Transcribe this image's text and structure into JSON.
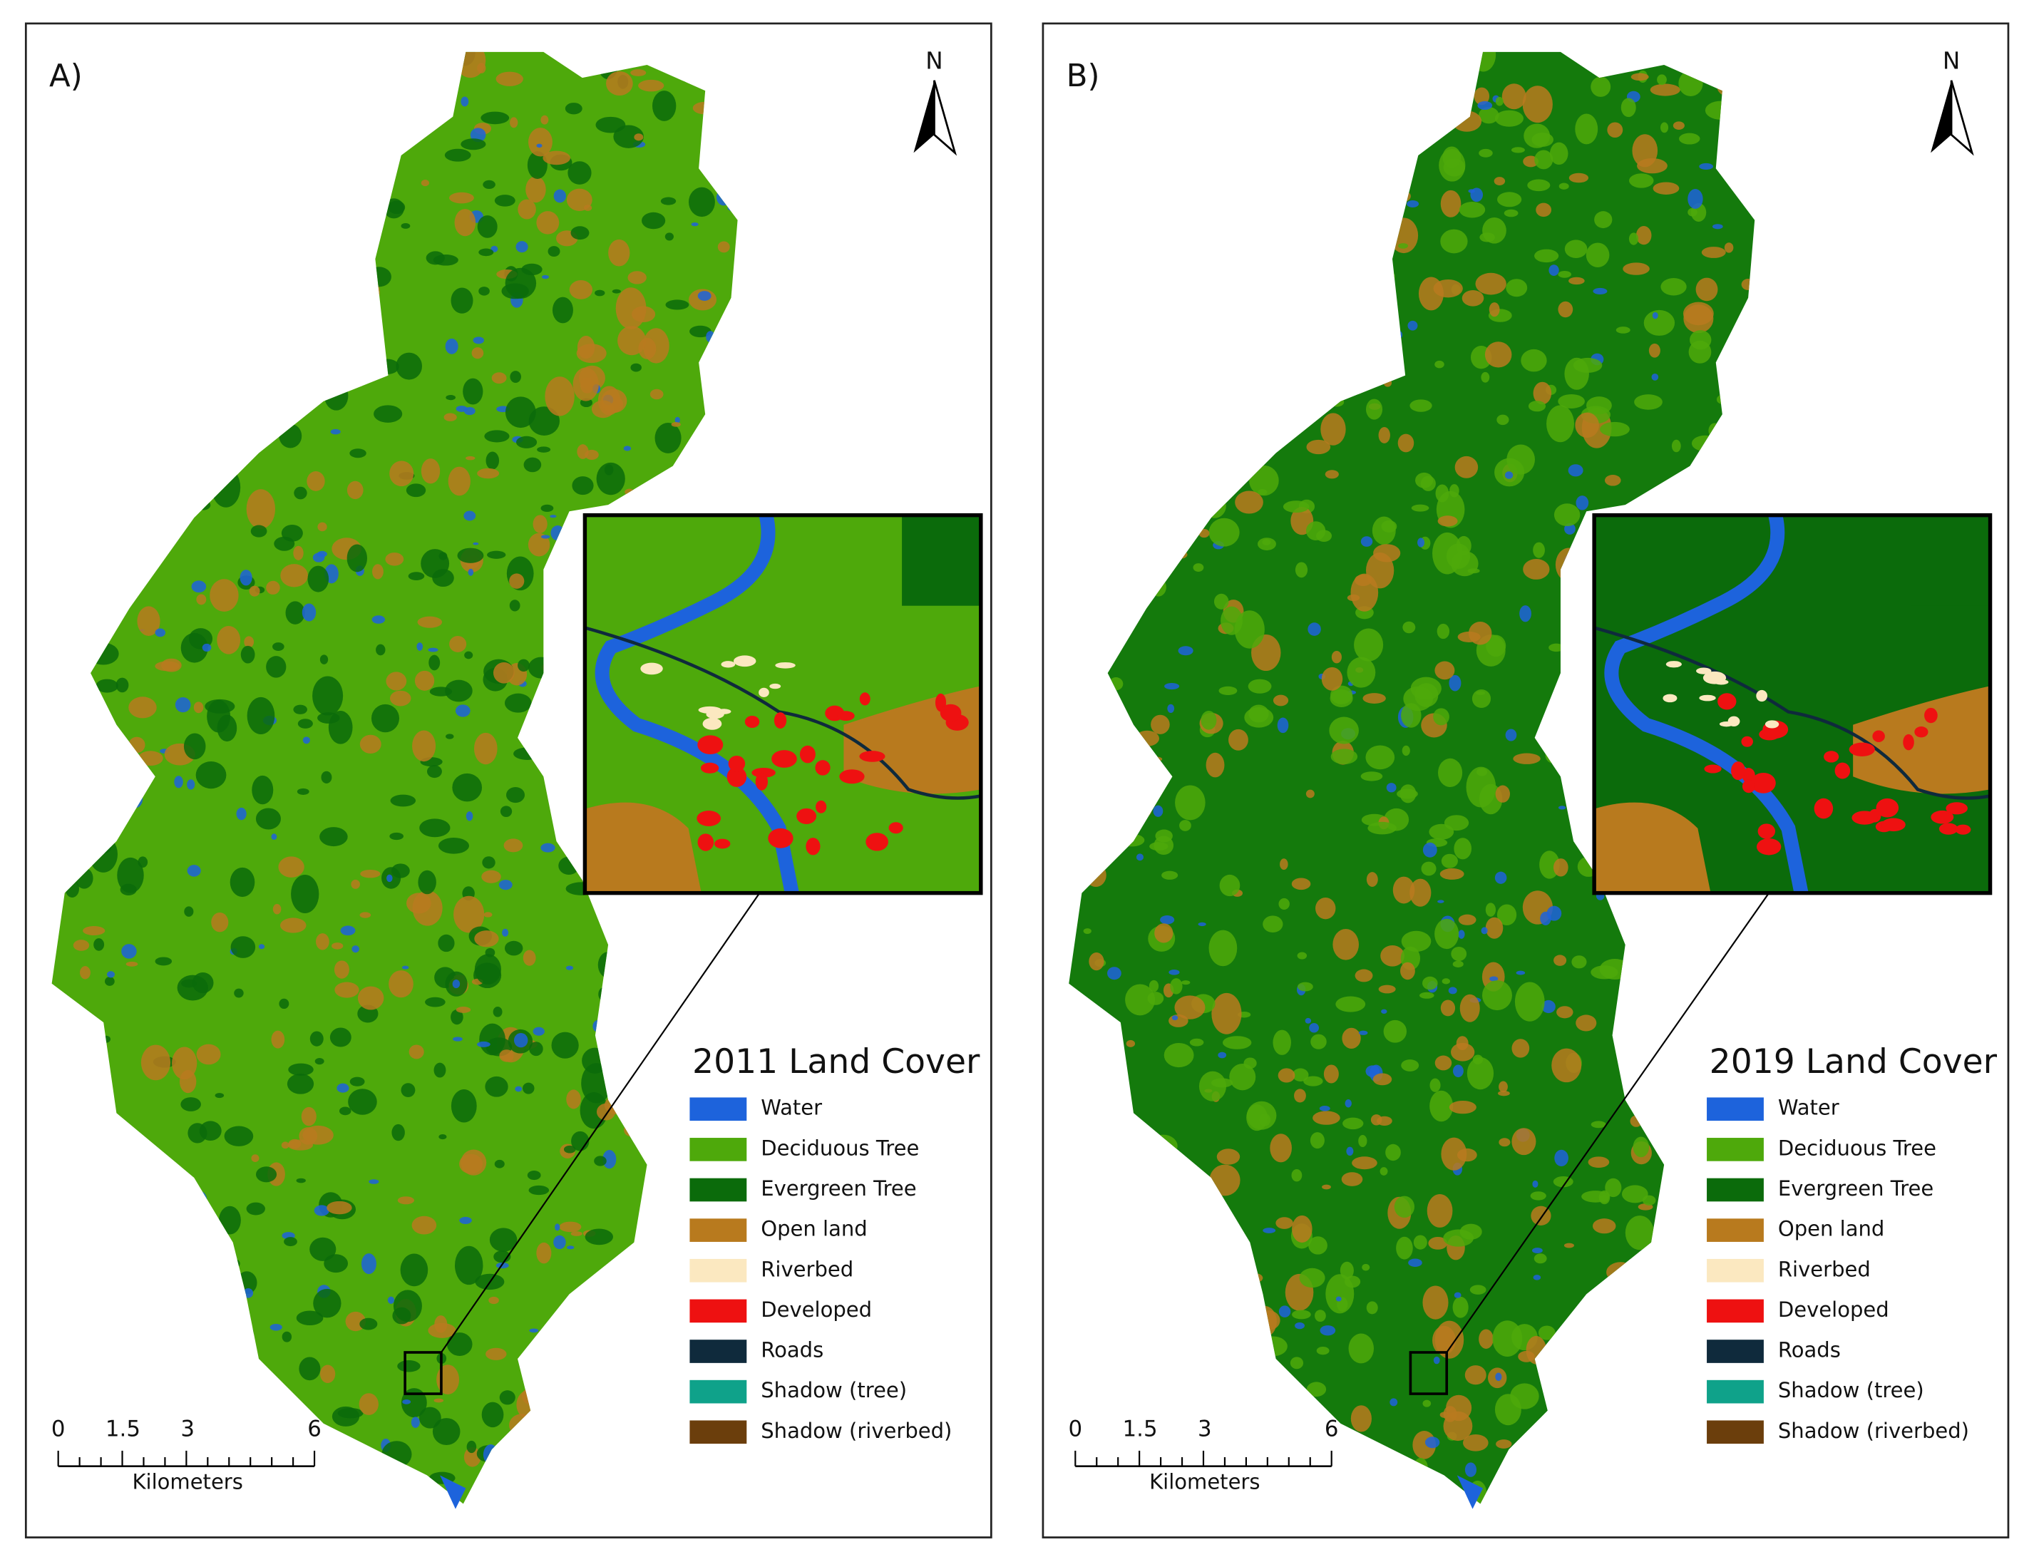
{
  "panels": [
    {
      "label": "A)",
      "north": "N",
      "legend": {
        "title": "2011 Land Cover",
        "items": [
          {
            "name": "Water",
            "color": "#1d63dc"
          },
          {
            "name": "Deciduous Tree",
            "color": "#4ea90b"
          },
          {
            "name": "Evergreen Tree",
            "color": "#0b6b0b"
          },
          {
            "name": "Open land",
            "color": "#b87a1e"
          },
          {
            "name": "Riverbed",
            "color": "#fbe8c0"
          },
          {
            "name": "Developed",
            "color": "#ee1111"
          },
          {
            "name": "Roads",
            "color": "#0f2a3c"
          },
          {
            "name": "Shadow (tree)",
            "color": "#0fa28a"
          },
          {
            "name": "Shadow (riverbed)",
            "color": "#6b3e0c"
          }
        ]
      },
      "scale": {
        "ticks": [
          "0",
          "1.5",
          "3",
          "6"
        ],
        "unit": "Kilometers"
      }
    },
    {
      "label": "B)",
      "north": "N",
      "legend": {
        "title": "2019 Land Cover",
        "items": [
          {
            "name": "Water",
            "color": "#1d63dc"
          },
          {
            "name": "Deciduous Tree",
            "color": "#4ea90b"
          },
          {
            "name": "Evergreen Tree",
            "color": "#0b6b0b"
          },
          {
            "name": "Open land",
            "color": "#b87a1e"
          },
          {
            "name": "Riverbed",
            "color": "#fbe8c0"
          },
          {
            "name": "Developed",
            "color": "#ee1111"
          },
          {
            "name": "Roads",
            "color": "#0f2a3c"
          },
          {
            "name": "Shadow (tree)",
            "color": "#0fa28a"
          },
          {
            "name": "Shadow (riverbed)",
            "color": "#6b3e0c"
          }
        ]
      },
      "scale": {
        "ticks": [
          "0",
          "1.5",
          "3",
          "6"
        ],
        "unit": "Kilometers"
      }
    }
  ]
}
